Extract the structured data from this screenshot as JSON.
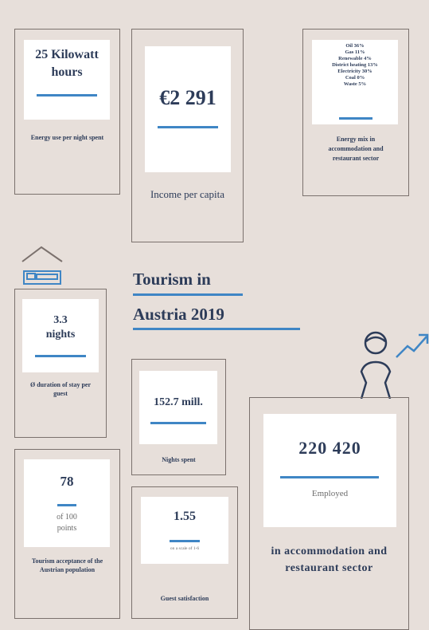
{
  "title_lines": [
    "Tourism in",
    "Austria 2019"
  ],
  "cards": [
    {
      "value": "25 Kilowatt hours",
      "caption": "Energy use per night spent"
    },
    {
      "value": "€2 291",
      "caption": "Income per capita"
    },
    {
      "items": [
        "Oil 36%",
        "Gas 11%",
        "Renewable 4%",
        "District heating 13%",
        "Electricity 30%",
        "Coal 0%",
        "Waste 5%"
      ],
      "caption": "Energy mix in accommodation and restaurant sector"
    },
    {
      "value": "3.3 nights",
      "caption": "Ø duration of stay per guest"
    },
    {
      "value": "152.7 mill.",
      "caption": "Nights spent"
    },
    {
      "value": "220 420",
      "note": "Employed",
      "caption": "in accommodation and restaurant sector"
    },
    {
      "value": "78",
      "note": "of 100 points",
      "caption": "Tourism acceptance of the Austrian population"
    },
    {
      "value": "1.55",
      "note": "on a scale of 1-6",
      "caption": "Guest satisfaction"
    }
  ]
}
